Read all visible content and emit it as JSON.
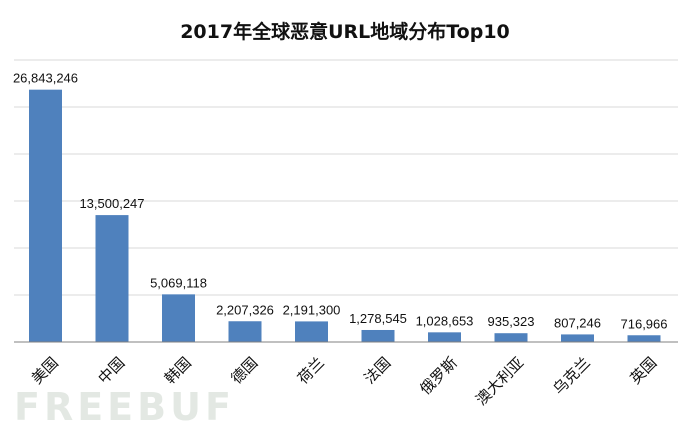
{
  "chart_data": {
    "type": "bar",
    "title": "2017年全球恶意URL地域分布Top10",
    "xlabel": "",
    "ylabel": "",
    "categories": [
      "美国",
      "中国",
      "韩国",
      "德国",
      "荷兰",
      "法国",
      "俄罗斯",
      "澳大利亚",
      "乌克兰",
      "英国"
    ],
    "values": [
      26843246,
      13500247,
      5069118,
      2207326,
      2191300,
      1278545,
      1028653,
      935323,
      807246,
      716966
    ],
    "value_labels": [
      "26,843,246",
      "13,500,247",
      "5,069,118",
      "2,207,326",
      "2,191,300",
      "1,278,545",
      "1,028,653",
      "935,323",
      "807,246",
      "716,966"
    ],
    "ylim": [
      0,
      30000000
    ],
    "gridlines": [
      5000000,
      10000000,
      15000000,
      20000000,
      25000000,
      30000000
    ],
    "grid": true,
    "colors": {
      "bar": "#4f81bd",
      "grid": "#d9d9d9",
      "axis": "#808080"
    }
  },
  "watermark": "FREEBUF"
}
